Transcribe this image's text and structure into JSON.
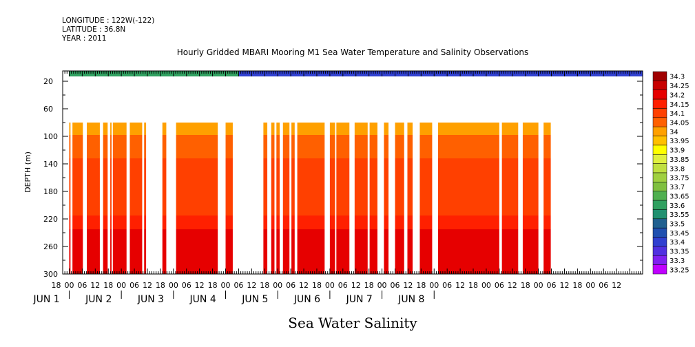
{
  "header": {
    "longitude": "LONGITUDE : 122W(-122)",
    "latitude": "LATITUDE : 36.8N",
    "year": "YEAR : 2011"
  },
  "chart_data": {
    "type": "heatmap",
    "title": "Hourly Gridded MBARI Mooring M1 Sea Water Temperature and Salinity Observations",
    "subtitle": "Sea Water Salinity",
    "ylabel": "DEPTH (m)",
    "y_ticks": [
      20,
      60,
      100,
      140,
      180,
      220,
      260,
      300
    ],
    "ylim": [
      300,
      5
    ],
    "x_hour_labels": [
      "18",
      "00",
      "06",
      "12",
      "18",
      "00",
      "06",
      "12",
      "18",
      "00",
      "06",
      "12",
      "18",
      "00",
      "06",
      "12",
      "18",
      "00",
      "06",
      "12",
      "18",
      "00",
      "06",
      "12",
      "18",
      "00",
      "06",
      "12",
      "18",
      "00",
      "06",
      "12",
      "18",
      "00",
      "06",
      "12",
      "18",
      "00",
      "06",
      "12",
      "18",
      "00",
      "06",
      "12"
    ],
    "x_day_labels": [
      "JUN  1",
      "JUN  2",
      "JUN  3",
      "JUN  4",
      "JUN  5",
      "JUN  6",
      "JUN  7",
      "JUN  8"
    ],
    "colorbar_levels": [
      "34.3",
      "34.25",
      "34.2",
      "34.15",
      "34.1",
      "34.05",
      "34",
      "33.95",
      "33.9",
      "33.85",
      "33.8",
      "33.75",
      "33.7",
      "33.65",
      "33.6",
      "33.55",
      "33.5",
      "33.45",
      "33.4",
      "33.35",
      "33.3",
      "33.25"
    ],
    "colorbar_colors": [
      "#a00000",
      "#c80000",
      "#e60000",
      "#ff2000",
      "#ff4000",
      "#ff6000",
      "#ffa000",
      "#ffc000",
      "#ffff00",
      "#e0f040",
      "#c0e040",
      "#a0d040",
      "#80c040",
      "#50b050",
      "#30a060",
      "#209070",
      "#206090",
      "#2050b0",
      "#3040d0",
      "#5030e0",
      "#8020f0",
      "#c000ff"
    ],
    "depth_layers": [
      {
        "top": 80,
        "bottom": 98,
        "level": "34"
      },
      {
        "top": 98,
        "bottom": 132,
        "level": "34.05"
      },
      {
        "top": 132,
        "bottom": 215,
        "level": "34.1"
      },
      {
        "top": 215,
        "bottom": 235,
        "level": "34.15"
      },
      {
        "top": 235,
        "bottom": 300,
        "level": "34.2"
      }
    ],
    "surface_band": {
      "top": 5,
      "bottom": 13,
      "level_before_jun5": "33.6",
      "level_after_jun5": "33.4"
    },
    "data_segments": [
      [
        0.0,
        0.2
      ],
      [
        0.5,
        2.1
      ],
      [
        2.7,
        4.7
      ],
      [
        5.2,
        5.9
      ],
      [
        6.3,
        6.5
      ],
      [
        6.7,
        8.8
      ],
      [
        9.3,
        11.2
      ],
      [
        11.5,
        11.8
      ],
      [
        14.3,
        14.9
      ],
      [
        16.4,
        22.8
      ],
      [
        24.0,
        25.1
      ],
      [
        29.8,
        30.4
      ],
      [
        31.0,
        31.5
      ],
      [
        31.8,
        32.3
      ],
      [
        32.8,
        33.8
      ],
      [
        34.1,
        34.6
      ],
      [
        35.0,
        39.2
      ],
      [
        40.0,
        40.8
      ],
      [
        41.0,
        43.0
      ],
      [
        43.8,
        45.8
      ],
      [
        46.1,
        47.3
      ],
      [
        48.3,
        49.0
      ],
      [
        50.0,
        51.4
      ],
      [
        51.9,
        52.7
      ],
      [
        53.8,
        55.7
      ],
      [
        56.6,
        66.0
      ],
      [
        66.4,
        68.9
      ],
      [
        69.6,
        72.0
      ],
      [
        72.8,
        73.9
      ]
    ]
  }
}
